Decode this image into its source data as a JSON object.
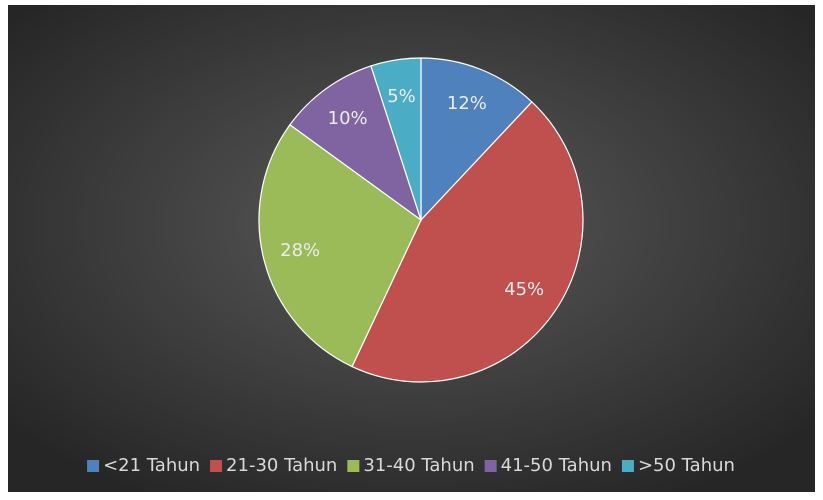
{
  "chart_data": {
    "type": "pie",
    "categories": [
      "<21 Tahun",
      "21-30 Tahun",
      "31-40 Tahun",
      "41-50 Tahun",
      ">50 Tahun"
    ],
    "values": [
      12,
      45,
      28,
      10,
      5
    ],
    "value_labels": [
      "12%",
      "45%",
      "28%",
      "10%",
      "5%"
    ],
    "colors": [
      "#4f81bd",
      "#c0504d",
      "#9bbb59",
      "#8064a2",
      "#4bacc6"
    ],
    "legend": "bottom"
  }
}
